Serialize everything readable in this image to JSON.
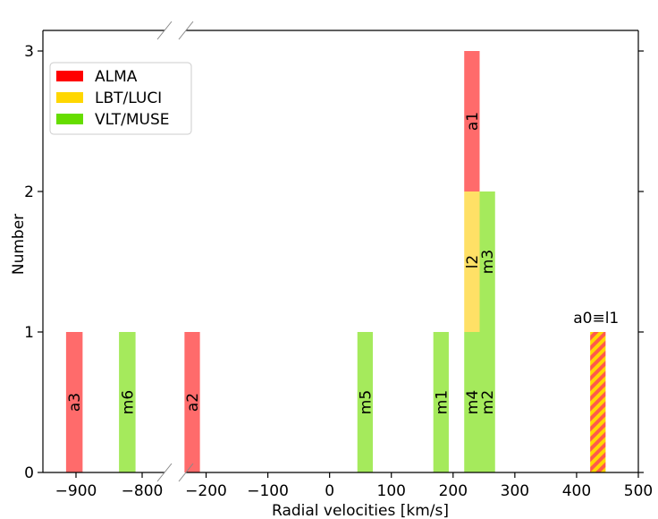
{
  "chart_data": {
    "type": "bar",
    "xlabel": "Radial velocities [km/s]",
    "ylabel": "Number",
    "ylim": [
      0,
      3.15
    ],
    "y_ticks": [
      0,
      1,
      2,
      3
    ],
    "broken_axis": {
      "left_xlim": [
        -950,
        -750
      ],
      "right_xlim": [
        -250,
        500
      ],
      "left_ticks": [
        -900,
        -800
      ],
      "right_ticks": [
        -200,
        -100,
        0,
        100,
        200,
        300,
        400,
        500
      ]
    },
    "legend": {
      "placement": "upper-left",
      "entries": [
        {
          "name": "ALMA",
          "color": "#ff0000"
        },
        {
          "name": "LBT/LUCI",
          "color": "#ffd700"
        },
        {
          "name": "VLT/MUSE",
          "color": "#66dd00"
        }
      ]
    },
    "bars": [
      {
        "label": "a3",
        "instrument": "ALMA",
        "x0": -915,
        "x1": -890,
        "bottom": 0,
        "top": 1,
        "color": "#ff6b6b"
      },
      {
        "label": "m6",
        "instrument": "VLT/MUSE",
        "x0": -835,
        "x1": -810,
        "bottom": 0,
        "top": 1,
        "color": "#a5ea5c"
      },
      {
        "label": "a2",
        "instrument": "ALMA",
        "x0": -235,
        "x1": -210,
        "bottom": 0,
        "top": 1,
        "color": "#ff6b6b"
      },
      {
        "label": "m5",
        "instrument": "VLT/MUSE",
        "x0": 45,
        "x1": 70,
        "bottom": 0,
        "top": 1,
        "color": "#a5ea5c"
      },
      {
        "label": "m1",
        "instrument": "VLT/MUSE",
        "x0": 168,
        "x1": 193,
        "bottom": 0,
        "top": 1,
        "color": "#a5ea5c"
      },
      {
        "label": "m4",
        "instrument": "VLT/MUSE",
        "x0": 218,
        "x1": 243,
        "bottom": 0,
        "top": 1,
        "color": "#a5ea5c"
      },
      {
        "label": "l2",
        "instrument": "LBT/LUCI",
        "x0": 218,
        "x1": 243,
        "bottom": 1,
        "top": 2,
        "color": "#ffe066"
      },
      {
        "label": "a1",
        "instrument": "ALMA",
        "x0": 218,
        "x1": 243,
        "bottom": 2,
        "top": 3,
        "color": "#ff6b6b"
      },
      {
        "label": "m2",
        "instrument": "VLT/MUSE",
        "x0": 243,
        "x1": 268,
        "bottom": 0,
        "top": 1,
        "color": "#a5ea5c"
      },
      {
        "label": "m3",
        "instrument": "VLT/MUSE",
        "x0": 243,
        "x1": 268,
        "bottom": 1,
        "top": 2,
        "color": "#a5ea5c"
      }
    ],
    "hatched_bar": {
      "label": "a0≡l1",
      "x0": 422,
      "x1": 447,
      "bottom": 0,
      "top": 1,
      "colors": [
        "#ff5a4a",
        "#ffd700"
      ]
    }
  }
}
